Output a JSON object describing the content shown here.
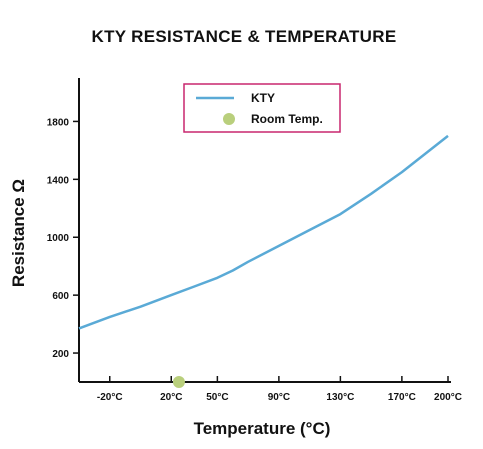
{
  "chart_data": {
    "type": "line",
    "title": "KTY RESISTANCE & TEMPERATURE",
    "xlabel": "Temperature (°C)",
    "ylabel": "Resistance Ω",
    "x_tick_labels": [
      "-20°C",
      "20°C",
      "50°C",
      "90°C",
      "130°C",
      "170°C",
      "200°C"
    ],
    "x_tick_values": [
      -20,
      20,
      50,
      90,
      130,
      170,
      200
    ],
    "y_ticks": [
      200,
      600,
      1000,
      1400,
      1800
    ],
    "xlim": [
      -40,
      200
    ],
    "ylim": [
      0,
      2100
    ],
    "grid": false,
    "legend_position": "top-center",
    "series": [
      {
        "name": "KTY",
        "color": "#5aaad6",
        "x": [
          -40,
          -20,
          0,
          20,
          35,
          50,
          60,
          70,
          90,
          110,
          130,
          150,
          170,
          200
        ],
        "y": [
          370,
          450,
          520,
          600,
          660,
          720,
          770,
          830,
          940,
          1050,
          1160,
          1300,
          1450,
          1700
        ]
      },
      {
        "name": "Room Temp.",
        "type": "scatter",
        "color": "#b9cf7c",
        "x": [
          25
        ],
        "y": [
          0
        ]
      }
    ],
    "legend_border_color": "#c8266e"
  }
}
